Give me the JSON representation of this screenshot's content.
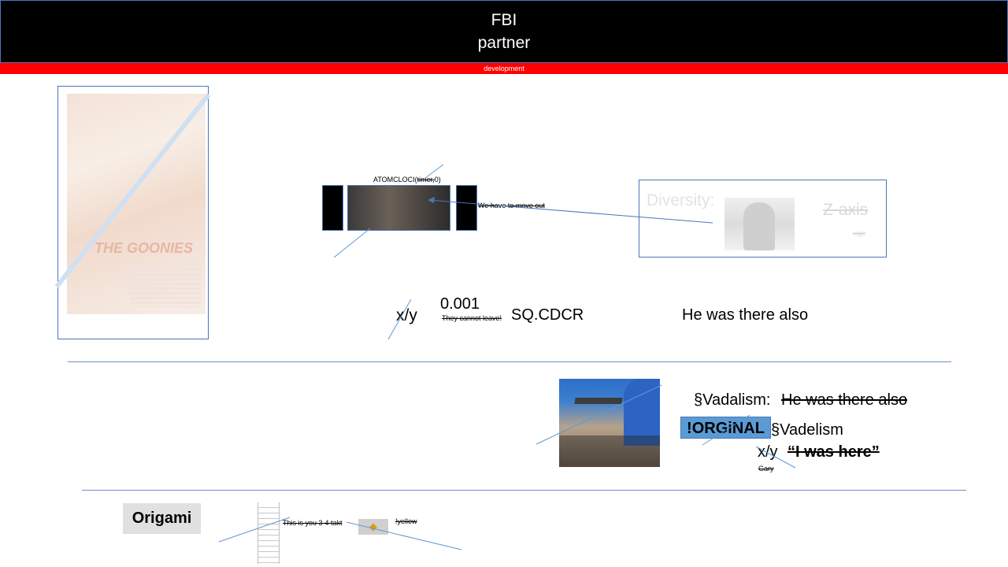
{
  "header": {
    "title": "FBI",
    "subtitle": "partner"
  },
  "banner": {
    "text": "development"
  },
  "poster": {
    "title_art": "THE GOONIES"
  },
  "film": {
    "caption_prefix": "ATOMCLOCI(",
    "caption_strike": "timer,",
    "caption_suffix": "0)",
    "note": "We have to move out"
  },
  "diversity": {
    "label": "Diversity:",
    "axis": "Z-axis",
    "small": "rage"
  },
  "row1": {
    "xy": "x/y",
    "value": "0.001",
    "strike_note": "They cannot leave!",
    "code": "SQ.CDCR",
    "statement": "He was there also"
  },
  "right_block": {
    "vandalism_label": "§Vadalism:",
    "vandalism_strike": "He was there also",
    "original_button": "!ORGiNAL",
    "vandelism": "§Vadelism",
    "xy": "x/y",
    "quote": "“I was here”",
    "signature": "Gary"
  },
  "bottom": {
    "origami": "Origami",
    "takt": "This is you 3-4 takt",
    "yellow": "!yellow"
  },
  "colors": {
    "banner": "#ff0000",
    "accent": "#5b9bd5",
    "line": "#4a76b8"
  }
}
